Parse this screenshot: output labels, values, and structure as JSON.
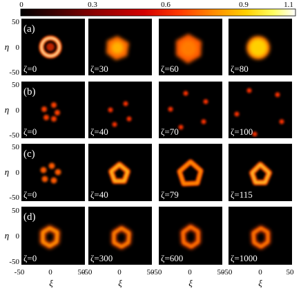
{
  "colorbar": {
    "ticks": [
      "0",
      "0.3",
      "0.6",
      "0.9",
      "1.1"
    ],
    "tick_values": [
      0,
      0.3,
      0.6,
      0.9,
      1.1
    ],
    "range": [
      0,
      1.1
    ],
    "colors": [
      "#000000",
      "#3a0000",
      "#8c0000",
      "#d40000",
      "#ff3a00",
      "#ff8a00",
      "#ffd000",
      "#ffff60",
      "#ffffff"
    ]
  },
  "axes": {
    "xlabel": "ξ",
    "ylabel": "η",
    "xticks": [
      "-50",
      "0",
      "50"
    ],
    "yticks": [
      "50",
      "0",
      "-50"
    ]
  },
  "rows": [
    {
      "label": "(a)",
      "frames": [
        "ζ=0",
        "ζ=30",
        "ζ=60",
        "ζ=80"
      ]
    },
    {
      "label": "(b)",
      "frames": [
        "ζ=0",
        "ζ=40",
        "ζ=70",
        "ζ=100"
      ]
    },
    {
      "label": "(c)",
      "frames": [
        "ζ=0",
        "ζ=40",
        "ζ=79",
        "ζ=115"
      ]
    },
    {
      "label": "(d)",
      "frames": [
        "ζ=0",
        "ζ=300",
        "ζ=600",
        "ζ=1000"
      ]
    }
  ]
}
